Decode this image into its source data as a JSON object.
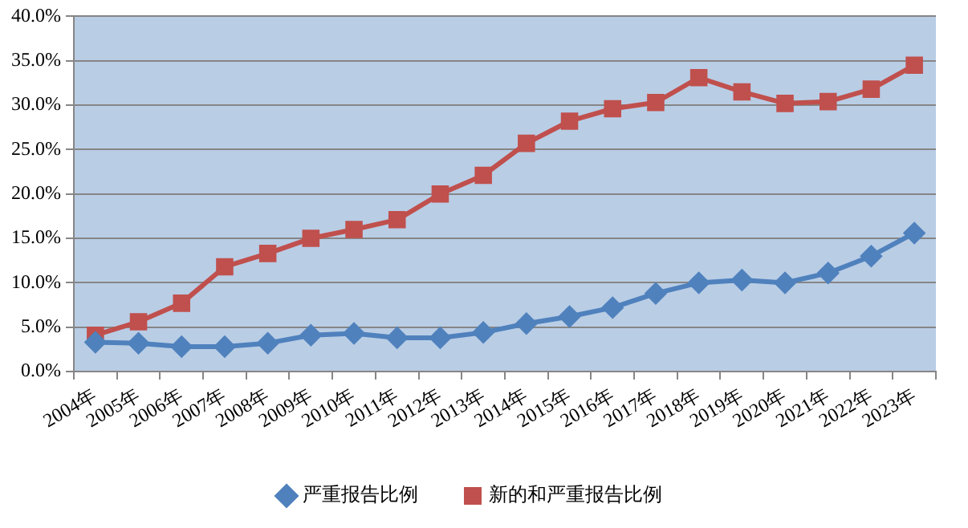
{
  "chart_data": {
    "type": "line",
    "categories": [
      "2004年",
      "2005年",
      "2006年",
      "2007年",
      "2008年",
      "2009年",
      "2010年",
      "2011年",
      "2012年",
      "2013年",
      "2014年",
      "2015年",
      "2016年",
      "2017年",
      "2018年",
      "2019年",
      "2020年",
      "2021年",
      "2022年",
      "2023年"
    ],
    "series": [
      {
        "name": "严重报告比例",
        "color": "#4f81bd",
        "marker": "diamond",
        "values": [
          3.3,
          3.2,
          2.8,
          2.8,
          3.2,
          4.1,
          4.3,
          3.8,
          3.8,
          4.4,
          5.4,
          6.2,
          7.2,
          8.8,
          10.0,
          10.3,
          10.0,
          11.1,
          13.0,
          15.6
        ]
      },
      {
        "name": "新的和严重报告比例",
        "color": "#c0504d",
        "marker": "square",
        "values": [
          4.1,
          5.6,
          7.7,
          11.8,
          13.3,
          15.0,
          16.0,
          17.1,
          20.0,
          22.1,
          25.7,
          28.2,
          29.6,
          30.3,
          33.1,
          31.5,
          30.2,
          30.4,
          31.8,
          34.5
        ]
      }
    ],
    "ylim": [
      0,
      40
    ],
    "yticks": [
      {
        "value": 0,
        "label": "0.0%"
      },
      {
        "value": 5,
        "label": "5.0%"
      },
      {
        "value": 10,
        "label": "10.0%"
      },
      {
        "value": 15,
        "label": "15.0%"
      },
      {
        "value": 20,
        "label": "20.0%"
      },
      {
        "value": 25,
        "label": "25.0%"
      },
      {
        "value": 30,
        "label": "30.0%"
      },
      {
        "value": 35,
        "label": "35.0%"
      },
      {
        "value": 40,
        "label": "40.0%"
      }
    ],
    "grid": "y",
    "legend": "bottom",
    "line_style": "solid"
  }
}
